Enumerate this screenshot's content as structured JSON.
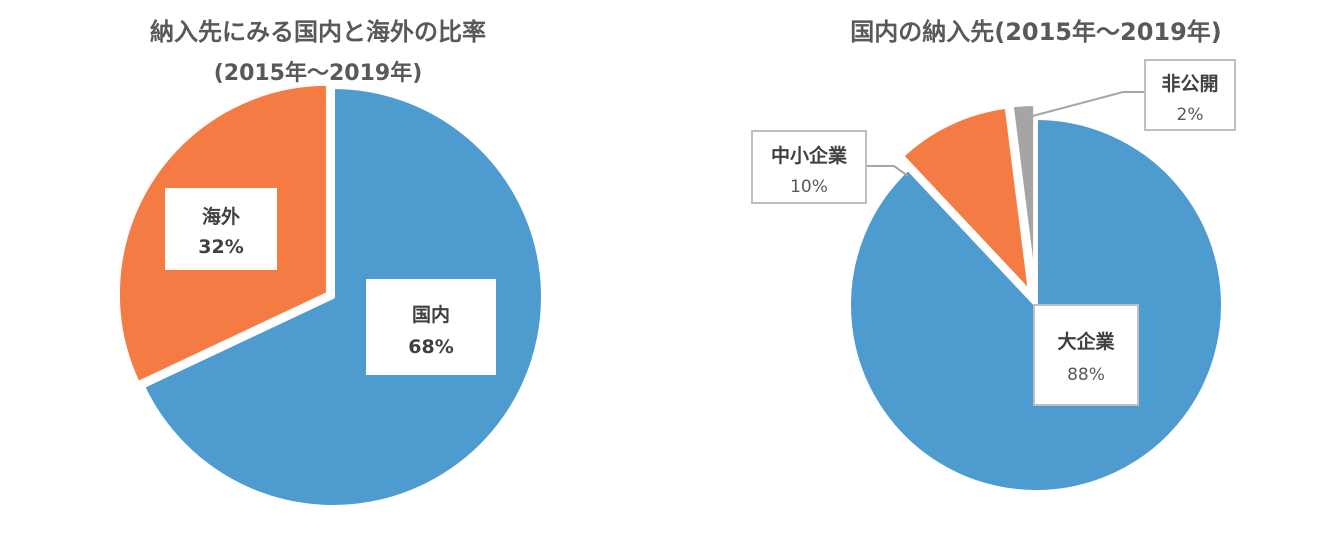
{
  "chart_data": [
    {
      "type": "pie",
      "title": "納入先にみる国内と海外の比率",
      "subtitle": "(2015年～2019年)",
      "slices": [
        {
          "label": "国内",
          "value": 68,
          "value_label": "68%",
          "color": "#4E9BD0"
        },
        {
          "label": "海外",
          "value": 32,
          "value_label": "32%",
          "color": "#F47B44"
        }
      ]
    },
    {
      "type": "pie",
      "title": "国内の納入先(2015年～2019年)",
      "subtitle": "",
      "slices": [
        {
          "label": "大企業",
          "value": 88,
          "value_label": "88%",
          "color": "#4E9BD0"
        },
        {
          "label": "中小企業",
          "value": 10,
          "value_label": "10%",
          "color": "#F47B44"
        },
        {
          "label": "非公開",
          "value": 2,
          "value_label": "2%",
          "color": "#A5A5A5"
        }
      ]
    }
  ]
}
